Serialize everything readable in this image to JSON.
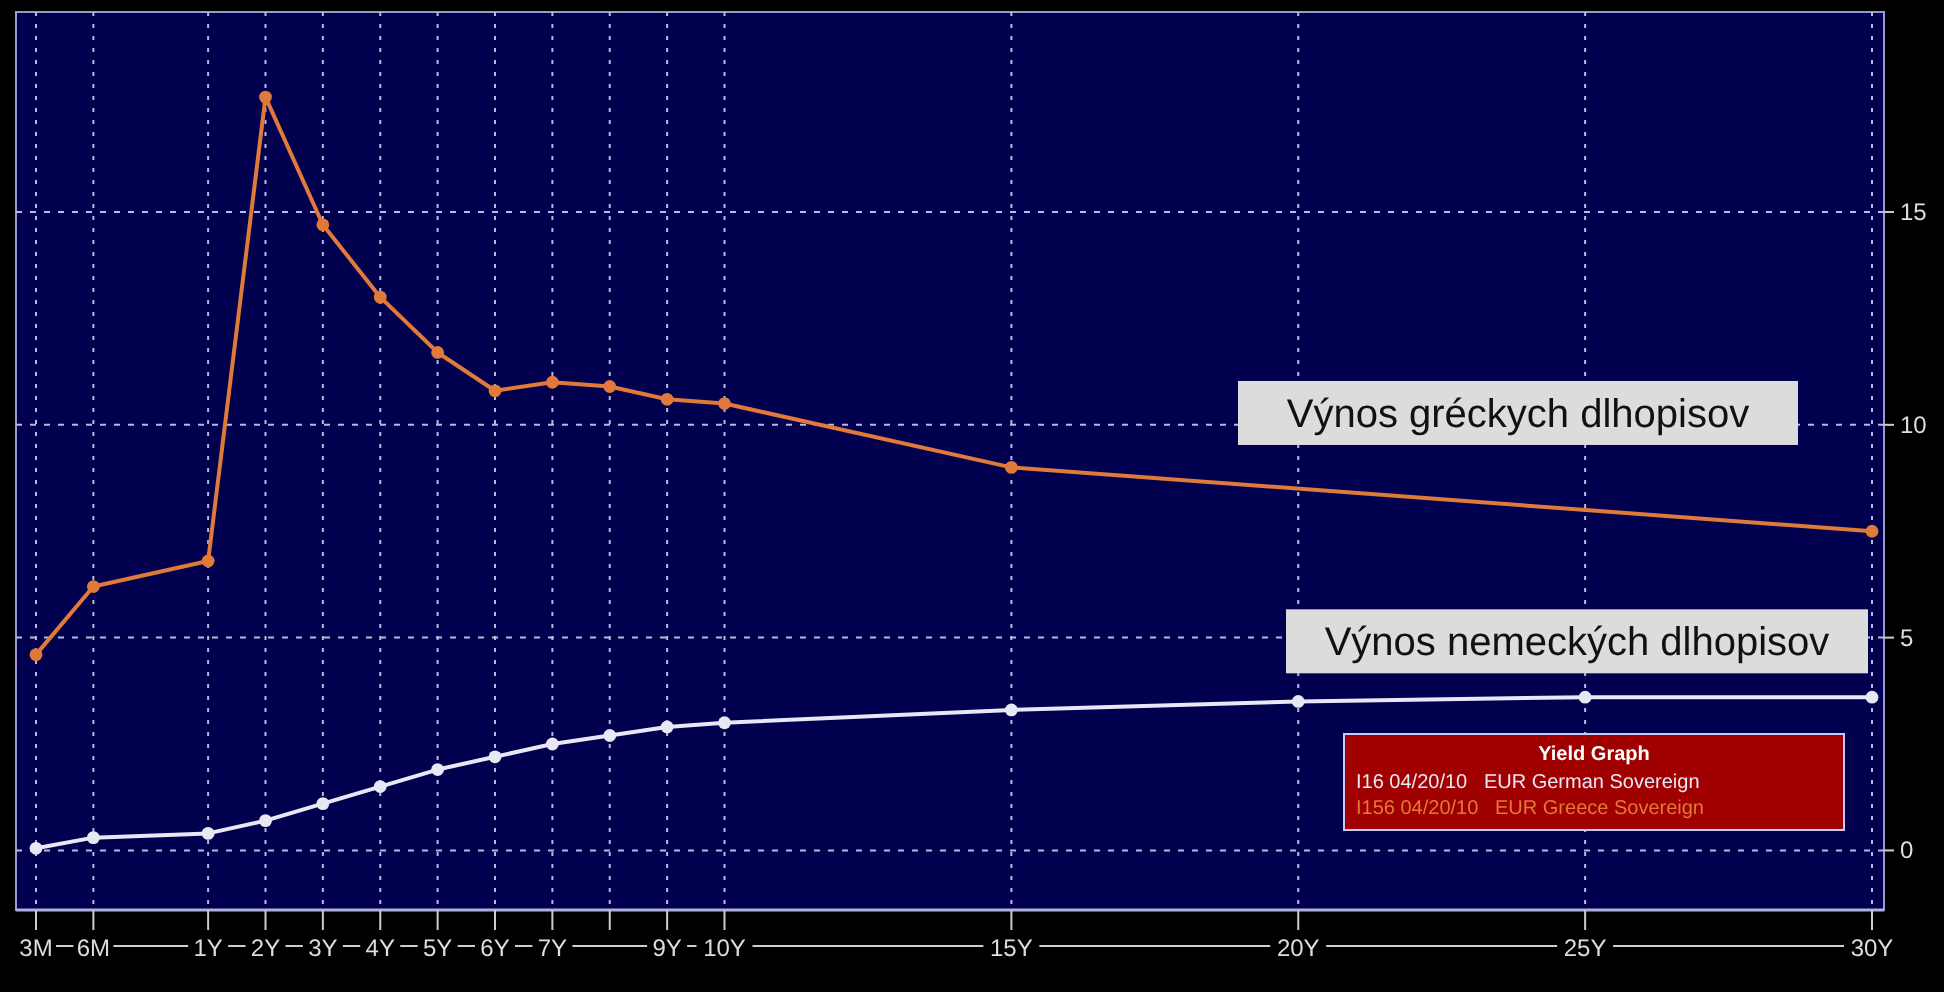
{
  "chart_data": {
    "type": "line",
    "legend_title": "Yield Graph",
    "legend": "bottom right",
    "grid": true,
    "marker": "circle",
    "line_style": "solid",
    "ylim": [
      -1.4,
      19.7
    ],
    "yticks": [
      0,
      5,
      10,
      15
    ],
    "categories": [
      "3M",
      "6M",
      null,
      "1Y",
      "2Y",
      "3Y",
      "4Y",
      "5Y",
      "6Y",
      "7Y",
      null,
      "9Y",
      "10Y",
      null,
      null,
      null,
      null,
      "15Y",
      null,
      null,
      null,
      null,
      "20Y",
      null,
      null,
      null,
      null,
      "25Y",
      null,
      null,
      null,
      null,
      "30Y"
    ],
    "series": [
      {
        "name": "I16 04/20/10   EUR German Sovereign",
        "color": "#e8e8f4",
        "values": [
          0.05,
          0.3,
          null,
          0.4,
          0.7,
          1.1,
          1.5,
          1.9,
          2.2,
          2.5,
          2.7,
          2.9,
          3.0,
          null,
          null,
          null,
          null,
          3.3,
          null,
          null,
          null,
          null,
          3.5,
          null,
          null,
          null,
          null,
          3.6,
          null,
          null,
          null,
          null,
          3.6
        ]
      },
      {
        "name": "I156 04/20/10   EUR Greece Sovereign",
        "color": "#e0793a",
        "values": [
          4.6,
          6.2,
          null,
          6.8,
          17.7,
          14.7,
          13.0,
          11.7,
          10.8,
          11.0,
          10.9,
          10.6,
          10.5,
          null,
          null,
          null,
          null,
          9.0,
          null,
          null,
          null,
          null,
          null,
          null,
          null,
          null,
          null,
          null,
          null,
          null,
          null,
          null,
          7.5
        ]
      }
    ],
    "annotations": [
      "Výnos gréckych dlhopisov",
      "Výnos nemeckých dlhopisov"
    ]
  }
}
